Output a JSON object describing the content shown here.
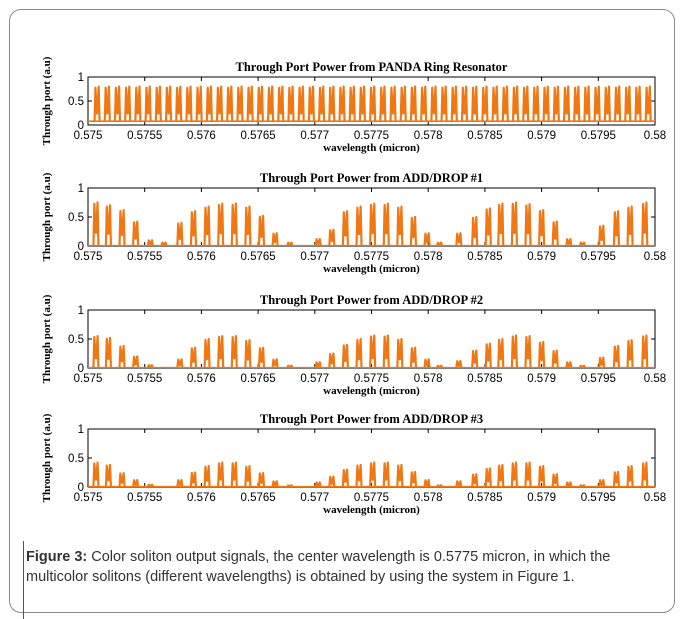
{
  "chart_data": [
    {
      "type": "line",
      "title": "Through Port Power from PANDA Ring Resonator",
      "xlabel": "wavelength (micron)",
      "ylabel": "Through port (a.u)",
      "xlim": [
        0.575,
        0.58
      ],
      "ylim": [
        0,
        1
      ],
      "x_ticks": [
        "0.575",
        "0.5755",
        "0.576",
        "0.5765",
        "0.577",
        "0.5775",
        "0.578",
        "0.5785",
        "0.579",
        "0.5795",
        "0.58"
      ],
      "y_ticks": [
        "0",
        "0.5",
        "1"
      ],
      "series": [
        {
          "color": "#f07814",
          "peak_wavelengths": [
            0.57508,
            0.57517,
            0.57526,
            0.57535,
            0.57544,
            0.57553,
            0.57562,
            0.57571,
            0.5758,
            0.57589,
            0.57598,
            0.57607,
            0.57616,
            0.57625,
            0.57634,
            0.57643,
            0.57652,
            0.57661,
            0.5767,
            0.57679,
            0.57688,
            0.57697,
            0.57706,
            0.57715,
            0.57724,
            0.57733,
            0.57742,
            0.57751,
            0.5776,
            0.57769,
            0.57778,
            0.57787,
            0.57796,
            0.57805,
            0.57814,
            0.57823,
            0.57832,
            0.57841,
            0.5785,
            0.57859,
            0.57868,
            0.57877,
            0.57886,
            0.57895,
            0.57904,
            0.57913,
            0.57922,
            0.57931,
            0.5794,
            0.57949,
            0.57958,
            0.57967,
            0.57976,
            0.57985,
            0.57994
          ],
          "peak_power": 0.8,
          "baseline": 0.08
        }
      ]
    },
    {
      "type": "line",
      "title": "Through Port Power from ADD/DROP  #1",
      "xlabel": "wavelength (micron)",
      "ylabel": "Through port (a.u)",
      "xlim": [
        0.575,
        0.58
      ],
      "ylim": [
        0,
        1
      ],
      "x_ticks": [
        "0.575",
        "0.5755",
        "0.576",
        "0.5765",
        "0.577",
        "0.5775",
        "0.578",
        "0.5785",
        "0.579",
        "0.5795",
        "0.58"
      ],
      "y_ticks": [
        "0",
        "0.5",
        "1"
      ],
      "series": [
        {
          "color": "#f07814",
          "peaks": [
            [
              0.57507,
              0.75
            ],
            [
              0.57518,
              0.7
            ],
            [
              0.5753,
              0.62
            ],
            [
              0.57542,
              0.42
            ],
            [
              0.57555,
              0.1
            ],
            [
              0.57567,
              0.06
            ],
            [
              0.57581,
              0.4
            ],
            [
              0.57593,
              0.6
            ],
            [
              0.57605,
              0.68
            ],
            [
              0.57617,
              0.73
            ],
            [
              0.57629,
              0.73
            ],
            [
              0.57641,
              0.68
            ],
            [
              0.57653,
              0.52
            ],
            [
              0.57665,
              0.22
            ],
            [
              0.57678,
              0.06
            ],
            [
              0.57703,
              0.12
            ],
            [
              0.57715,
              0.28
            ],
            [
              0.57727,
              0.6
            ],
            [
              0.57739,
              0.68
            ],
            [
              0.57751,
              0.73
            ],
            [
              0.57763,
              0.73
            ],
            [
              0.57775,
              0.68
            ],
            [
              0.57787,
              0.5
            ],
            [
              0.57799,
              0.22
            ],
            [
              0.5781,
              0.06
            ],
            [
              0.57827,
              0.22
            ],
            [
              0.57841,
              0.5
            ],
            [
              0.57853,
              0.65
            ],
            [
              0.57864,
              0.73
            ],
            [
              0.57876,
              0.75
            ],
            [
              0.57888,
              0.72
            ],
            [
              0.579,
              0.62
            ],
            [
              0.57912,
              0.42
            ],
            [
              0.57924,
              0.12
            ],
            [
              0.57936,
              0.06
            ],
            [
              0.57953,
              0.35
            ],
            [
              0.57966,
              0.6
            ],
            [
              0.57978,
              0.68
            ],
            [
              0.57991,
              0.75
            ]
          ]
        }
      ]
    },
    {
      "type": "line",
      "title": "Through Port Power from ADD/DROP  #2",
      "xlabel": "wavelength (micron)",
      "ylabel": "Through port (a.u)",
      "xlim": [
        0.575,
        0.58
      ],
      "ylim": [
        0,
        1
      ],
      "x_ticks": [
        "0.575",
        "0.5755",
        "0.576",
        "0.5765",
        "0.577",
        "0.5775",
        "0.578",
        "0.5785",
        "0.579",
        "0.5795",
        "0.58"
      ],
      "y_ticks": [
        "0",
        "0.5",
        "1"
      ],
      "series": [
        {
          "color": "#f07814",
          "peaks": [
            [
              0.57507,
              0.55
            ],
            [
              0.57518,
              0.52
            ],
            [
              0.5753,
              0.38
            ],
            [
              0.57542,
              0.2
            ],
            [
              0.57555,
              0.05
            ],
            [
              0.57581,
              0.15
            ],
            [
              0.57593,
              0.35
            ],
            [
              0.57605,
              0.5
            ],
            [
              0.57617,
              0.55
            ],
            [
              0.57629,
              0.55
            ],
            [
              0.57641,
              0.48
            ],
            [
              0.57653,
              0.35
            ],
            [
              0.57665,
              0.15
            ],
            [
              0.57678,
              0.04
            ],
            [
              0.57703,
              0.1
            ],
            [
              0.57715,
              0.25
            ],
            [
              0.57727,
              0.4
            ],
            [
              0.57739,
              0.5
            ],
            [
              0.57751,
              0.56
            ],
            [
              0.57763,
              0.56
            ],
            [
              0.57775,
              0.5
            ],
            [
              0.57787,
              0.35
            ],
            [
              0.57799,
              0.15
            ],
            [
              0.5781,
              0.04
            ],
            [
              0.57827,
              0.12
            ],
            [
              0.57841,
              0.3
            ],
            [
              0.57853,
              0.42
            ],
            [
              0.57864,
              0.5
            ],
            [
              0.57876,
              0.56
            ],
            [
              0.57888,
              0.55
            ],
            [
              0.579,
              0.45
            ],
            [
              0.57912,
              0.3
            ],
            [
              0.57924,
              0.1
            ],
            [
              0.57936,
              0.04
            ],
            [
              0.57953,
              0.18
            ],
            [
              0.57966,
              0.38
            ],
            [
              0.57978,
              0.48
            ],
            [
              0.57991,
              0.56
            ]
          ]
        }
      ]
    },
    {
      "type": "line",
      "title": "Through Port Power from ADD/DROP  #3",
      "xlabel": "wavelength (micron)",
      "ylabel": "Through port (a.u)",
      "xlim": [
        0.575,
        0.58
      ],
      "ylim": [
        0,
        1
      ],
      "x_ticks": [
        "0.575",
        "0.5755",
        "0.576",
        "0.5765",
        "0.577",
        "0.5775",
        "0.578",
        "0.5785",
        "0.579",
        "0.5795",
        "0.58"
      ],
      "y_ticks": [
        "0",
        "0.5",
        "1"
      ],
      "series": [
        {
          "color": "#f07814",
          "peaks": [
            [
              0.57507,
              0.42
            ],
            [
              0.57518,
              0.38
            ],
            [
              0.5753,
              0.24
            ],
            [
              0.57542,
              0.12
            ],
            [
              0.57555,
              0.04
            ],
            [
              0.57581,
              0.12
            ],
            [
              0.57593,
              0.25
            ],
            [
              0.57605,
              0.36
            ],
            [
              0.57617,
              0.42
            ],
            [
              0.57629,
              0.42
            ],
            [
              0.57641,
              0.36
            ],
            [
              0.57653,
              0.24
            ],
            [
              0.57665,
              0.1
            ],
            [
              0.57678,
              0.03
            ],
            [
              0.57703,
              0.08
            ],
            [
              0.57715,
              0.18
            ],
            [
              0.57727,
              0.3
            ],
            [
              0.57739,
              0.38
            ],
            [
              0.57751,
              0.42
            ],
            [
              0.57763,
              0.42
            ],
            [
              0.57775,
              0.38
            ],
            [
              0.57787,
              0.26
            ],
            [
              0.57799,
              0.12
            ],
            [
              0.5781,
              0.03
            ],
            [
              0.57827,
              0.1
            ],
            [
              0.57841,
              0.22
            ],
            [
              0.57853,
              0.32
            ],
            [
              0.57864,
              0.38
            ],
            [
              0.57876,
              0.42
            ],
            [
              0.57888,
              0.42
            ],
            [
              0.579,
              0.36
            ],
            [
              0.57912,
              0.22
            ],
            [
              0.57924,
              0.08
            ],
            [
              0.57936,
              0.03
            ],
            [
              0.57953,
              0.12
            ],
            [
              0.57966,
              0.26
            ],
            [
              0.57978,
              0.36
            ],
            [
              0.57991,
              0.42
            ]
          ]
        }
      ]
    }
  ],
  "caption": {
    "label": "Figure 3:",
    "text": " Color soliton output signals, the center wavelength is 0.5775 micron, in which the multicolor solitons (different wavelengths) is obtained by using the system in Figure 1."
  }
}
